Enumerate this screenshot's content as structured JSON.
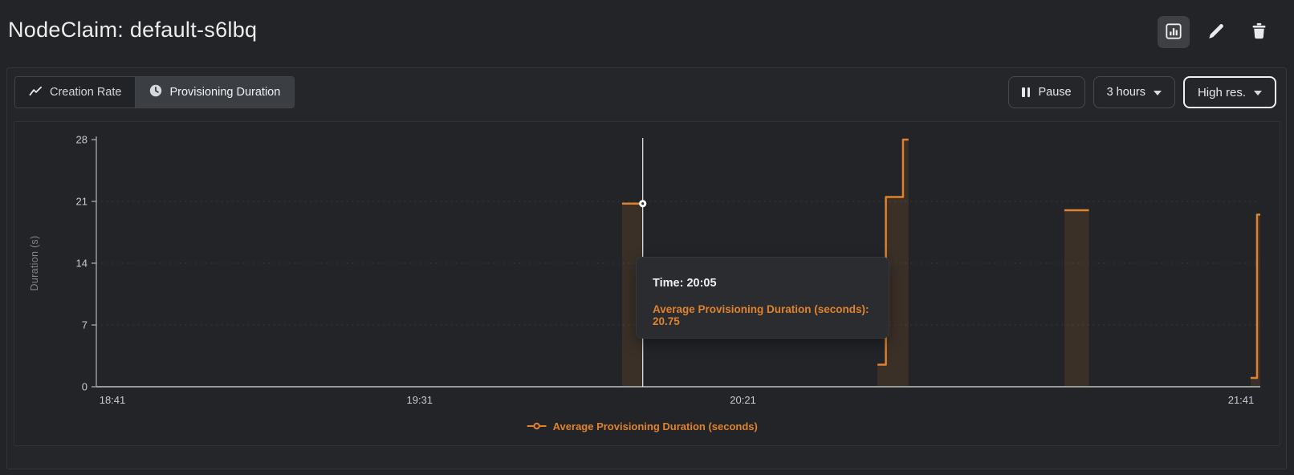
{
  "header": {
    "title": "NodeClaim: default-s6lbq",
    "icons": [
      "bar-chart-icon",
      "pencil-icon",
      "trash-icon"
    ]
  },
  "toolbar": {
    "tabs": [
      {
        "label": "Creation Rate",
        "icon": "line-chart-icon",
        "active": false
      },
      {
        "label": "Provisioning Duration",
        "icon": "clock-icon",
        "active": true
      }
    ],
    "pause_label": "Pause",
    "time_range_label": "3 hours",
    "resolution_label": "High res."
  },
  "tooltip": {
    "time_text": "Time: 20:05",
    "value_text": "Average Provisioning Duration (seconds): 20.75"
  },
  "chart_data": {
    "type": "line",
    "title": "",
    "line_style": "step",
    "xlabel": "",
    "ylabel": "Duration (s)",
    "x_axis": {
      "kind": "time",
      "range_minutes": [
        0,
        180
      ],
      "start_time": "18:41",
      "ticks": [
        {
          "minute": 0,
          "label": "18:41"
        },
        {
          "minute": 50,
          "label": "19:31"
        },
        {
          "minute": 100,
          "label": "20:21"
        },
        {
          "minute": 180,
          "label": "21:41"
        }
      ]
    },
    "y_axis": {
      "label": "Duration (s)",
      "range": [
        0,
        28
      ],
      "ticks": [
        0,
        7,
        14,
        21,
        28
      ]
    },
    "gridlines_y": [
      7,
      14,
      21
    ],
    "grid": "dotted-horizontal",
    "legend_position": "bottom-center",
    "crosshair_color": "#ffffff",
    "series": [
      {
        "name": "Average Provisioning Duration (seconds)",
        "color": "#e0832c",
        "fill_opacity": 0.13,
        "segments": [
          [
            [
              81.3,
              20.75
            ],
            [
              84.5,
              20.75
            ]
          ],
          [
            [
              120.8,
              2.5
            ],
            [
              122.1,
              2.5
            ],
            [
              122.1,
              21.5
            ],
            [
              124.75,
              21.5
            ],
            [
              124.75,
              28
            ],
            [
              125.6,
              28
            ]
          ],
          [
            [
              149.7,
              20
            ],
            [
              153.5,
              20
            ]
          ],
          [
            [
              178.5,
              1
            ],
            [
              179.5,
              1
            ],
            [
              179.5,
              19.5
            ],
            [
              180,
              19.5
            ]
          ]
        ]
      }
    ],
    "hover_point": {
      "minute": 84.5,
      "time": "20:05",
      "value": 20.75
    }
  }
}
